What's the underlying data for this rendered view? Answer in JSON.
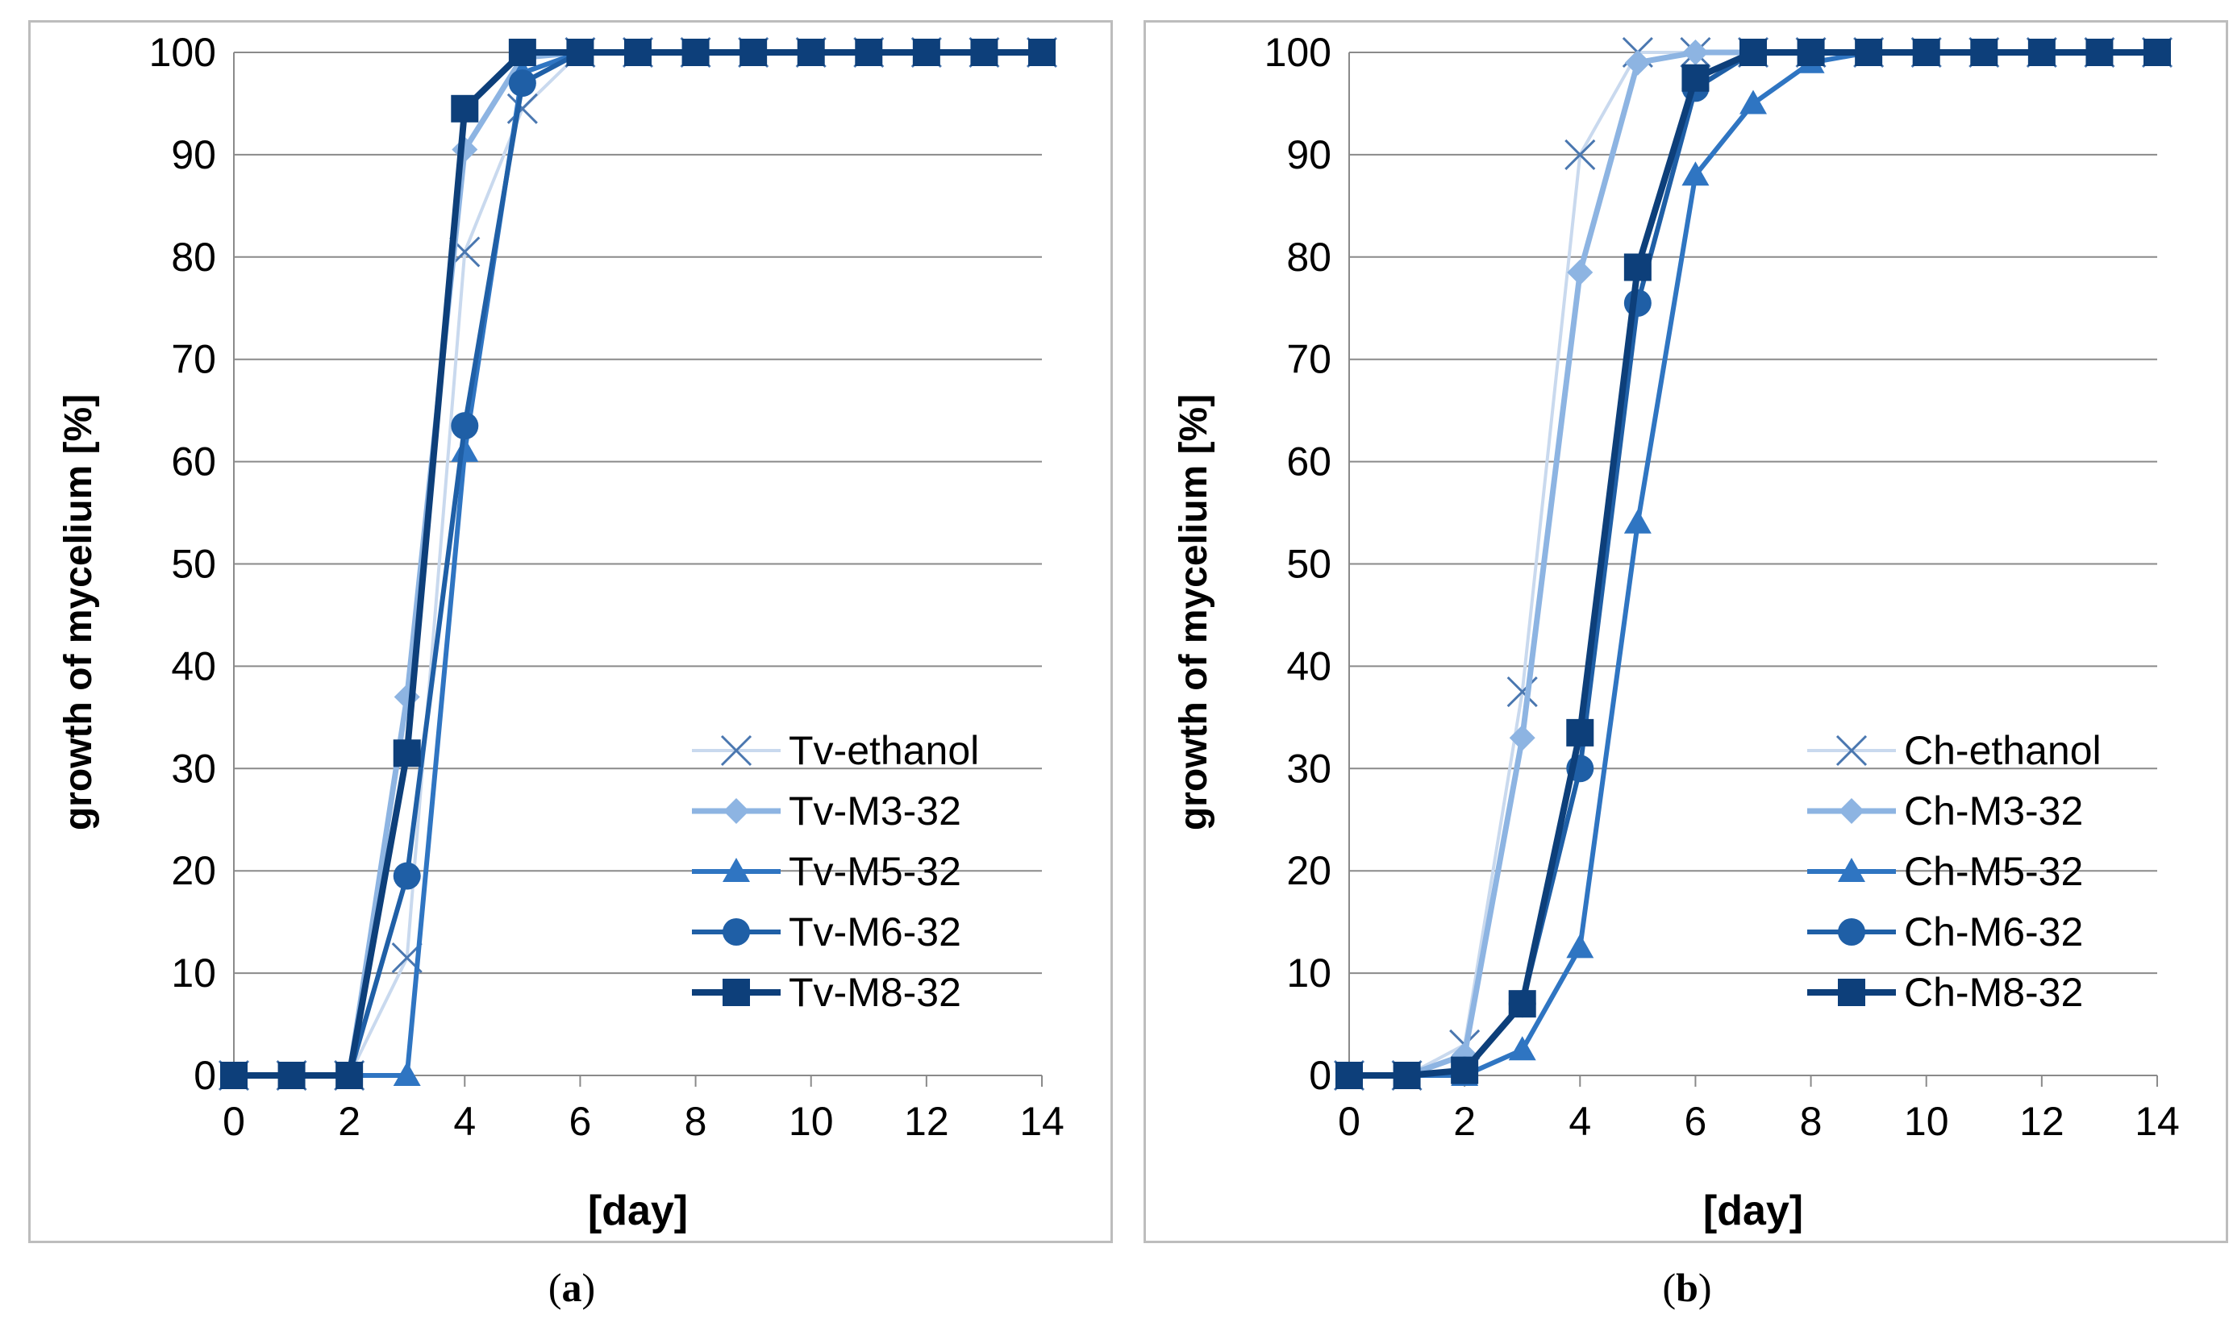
{
  "chart_data": [
    {
      "type": "line",
      "panel": "a",
      "title": "",
      "xlabel": "[day]",
      "ylabel": "growth of mycelium [%]",
      "xlim": [
        0,
        14
      ],
      "ylim": [
        0,
        100
      ],
      "xticks": [
        0,
        2,
        4,
        6,
        8,
        10,
        12,
        14
      ],
      "yticks": [
        0,
        10,
        20,
        30,
        40,
        50,
        60,
        70,
        80,
        90,
        100
      ],
      "grid": "horizontal",
      "legend_position": "bottom-right",
      "x": [
        0,
        1,
        2,
        3,
        4,
        5,
        6,
        7,
        8,
        9,
        10,
        11,
        12,
        13,
        14
      ],
      "series": [
        {
          "name": "Tv-ethanol",
          "marker": "x",
          "color": "#c9d9ee",
          "values": [
            0,
            0,
            0,
            11.5,
            80.5,
            94.5,
            100,
            100,
            100,
            100,
            100,
            100,
            100,
            100,
            100
          ]
        },
        {
          "name": "Tv-M3-32",
          "marker": "diamond",
          "color": "#8db4e2",
          "values": [
            0,
            0,
            0,
            37,
            90.5,
            99.5,
            100,
            100,
            100,
            100,
            100,
            100,
            100,
            100,
            100
          ]
        },
        {
          "name": "Tv-M5-32",
          "marker": "triangle",
          "color": "#2f75c2",
          "values": [
            0,
            0,
            0,
            0,
            61,
            98,
            100,
            100,
            100,
            100,
            100,
            100,
            100,
            100,
            100
          ]
        },
        {
          "name": "Tv-M6-32",
          "marker": "circle",
          "color": "#1f5fa6",
          "values": [
            0,
            0,
            0,
            19.5,
            63.5,
            97,
            100,
            100,
            100,
            100,
            100,
            100,
            100,
            100,
            100
          ]
        },
        {
          "name": "Tv-M8-32",
          "marker": "square",
          "color": "#0d3f7a",
          "values": [
            0,
            0,
            0,
            31.5,
            94.5,
            100,
            100,
            100,
            100,
            100,
            100,
            100,
            100,
            100,
            100
          ]
        }
      ]
    },
    {
      "type": "line",
      "panel": "b",
      "title": "",
      "xlabel": "[day]",
      "ylabel": "growth of mycelium [%]",
      "xlim": [
        0,
        14
      ],
      "ylim": [
        0,
        100
      ],
      "xticks": [
        0,
        2,
        4,
        6,
        8,
        10,
        12,
        14
      ],
      "yticks": [
        0,
        10,
        20,
        30,
        40,
        50,
        60,
        70,
        80,
        90,
        100
      ],
      "grid": "horizontal",
      "legend_position": "bottom-right",
      "x": [
        0,
        1,
        2,
        3,
        4,
        5,
        6,
        7,
        8,
        9,
        10,
        11,
        12,
        13,
        14
      ],
      "series": [
        {
          "name": "Ch-ethanol",
          "marker": "x",
          "color": "#c9d9ee",
          "values": [
            0,
            0,
            3,
            37.5,
            90,
            100,
            100,
            100,
            100,
            100,
            100,
            100,
            100,
            100,
            100
          ]
        },
        {
          "name": "Ch-M3-32",
          "marker": "diamond",
          "color": "#8db4e2",
          "values": [
            0,
            0,
            2,
            33,
            78.5,
            99,
            100,
            100,
            100,
            100,
            100,
            100,
            100,
            100,
            100
          ]
        },
        {
          "name": "Ch-M5-32",
          "marker": "triangle",
          "color": "#2f75c2",
          "values": [
            0,
            0,
            0,
            2.5,
            12.5,
            54,
            88,
            95,
            99,
            100,
            100,
            100,
            100,
            100,
            100
          ]
        },
        {
          "name": "Ch-M6-32",
          "marker": "circle",
          "color": "#1f5fa6",
          "values": [
            0,
            0,
            0.5,
            7,
            30,
            75.5,
            96.5,
            100,
            100,
            100,
            100,
            100,
            100,
            100,
            100
          ]
        },
        {
          "name": "Ch-M8-32",
          "marker": "square",
          "color": "#0d3f7a",
          "values": [
            0,
            0,
            0.5,
            7,
            33.5,
            79,
            97.5,
            100,
            100,
            100,
            100,
            100,
            100,
            100,
            100
          ]
        }
      ]
    }
  ],
  "captions": {
    "a": {
      "open": "(",
      "letter": "a",
      "close": ")"
    },
    "b": {
      "open": "(",
      "letter": "b",
      "close": ")"
    }
  },
  "colors": {
    "gridline": "#8a8a8a",
    "axis": "#8a8a8a",
    "frame": "#bdbdbd",
    "text": "#000000"
  }
}
